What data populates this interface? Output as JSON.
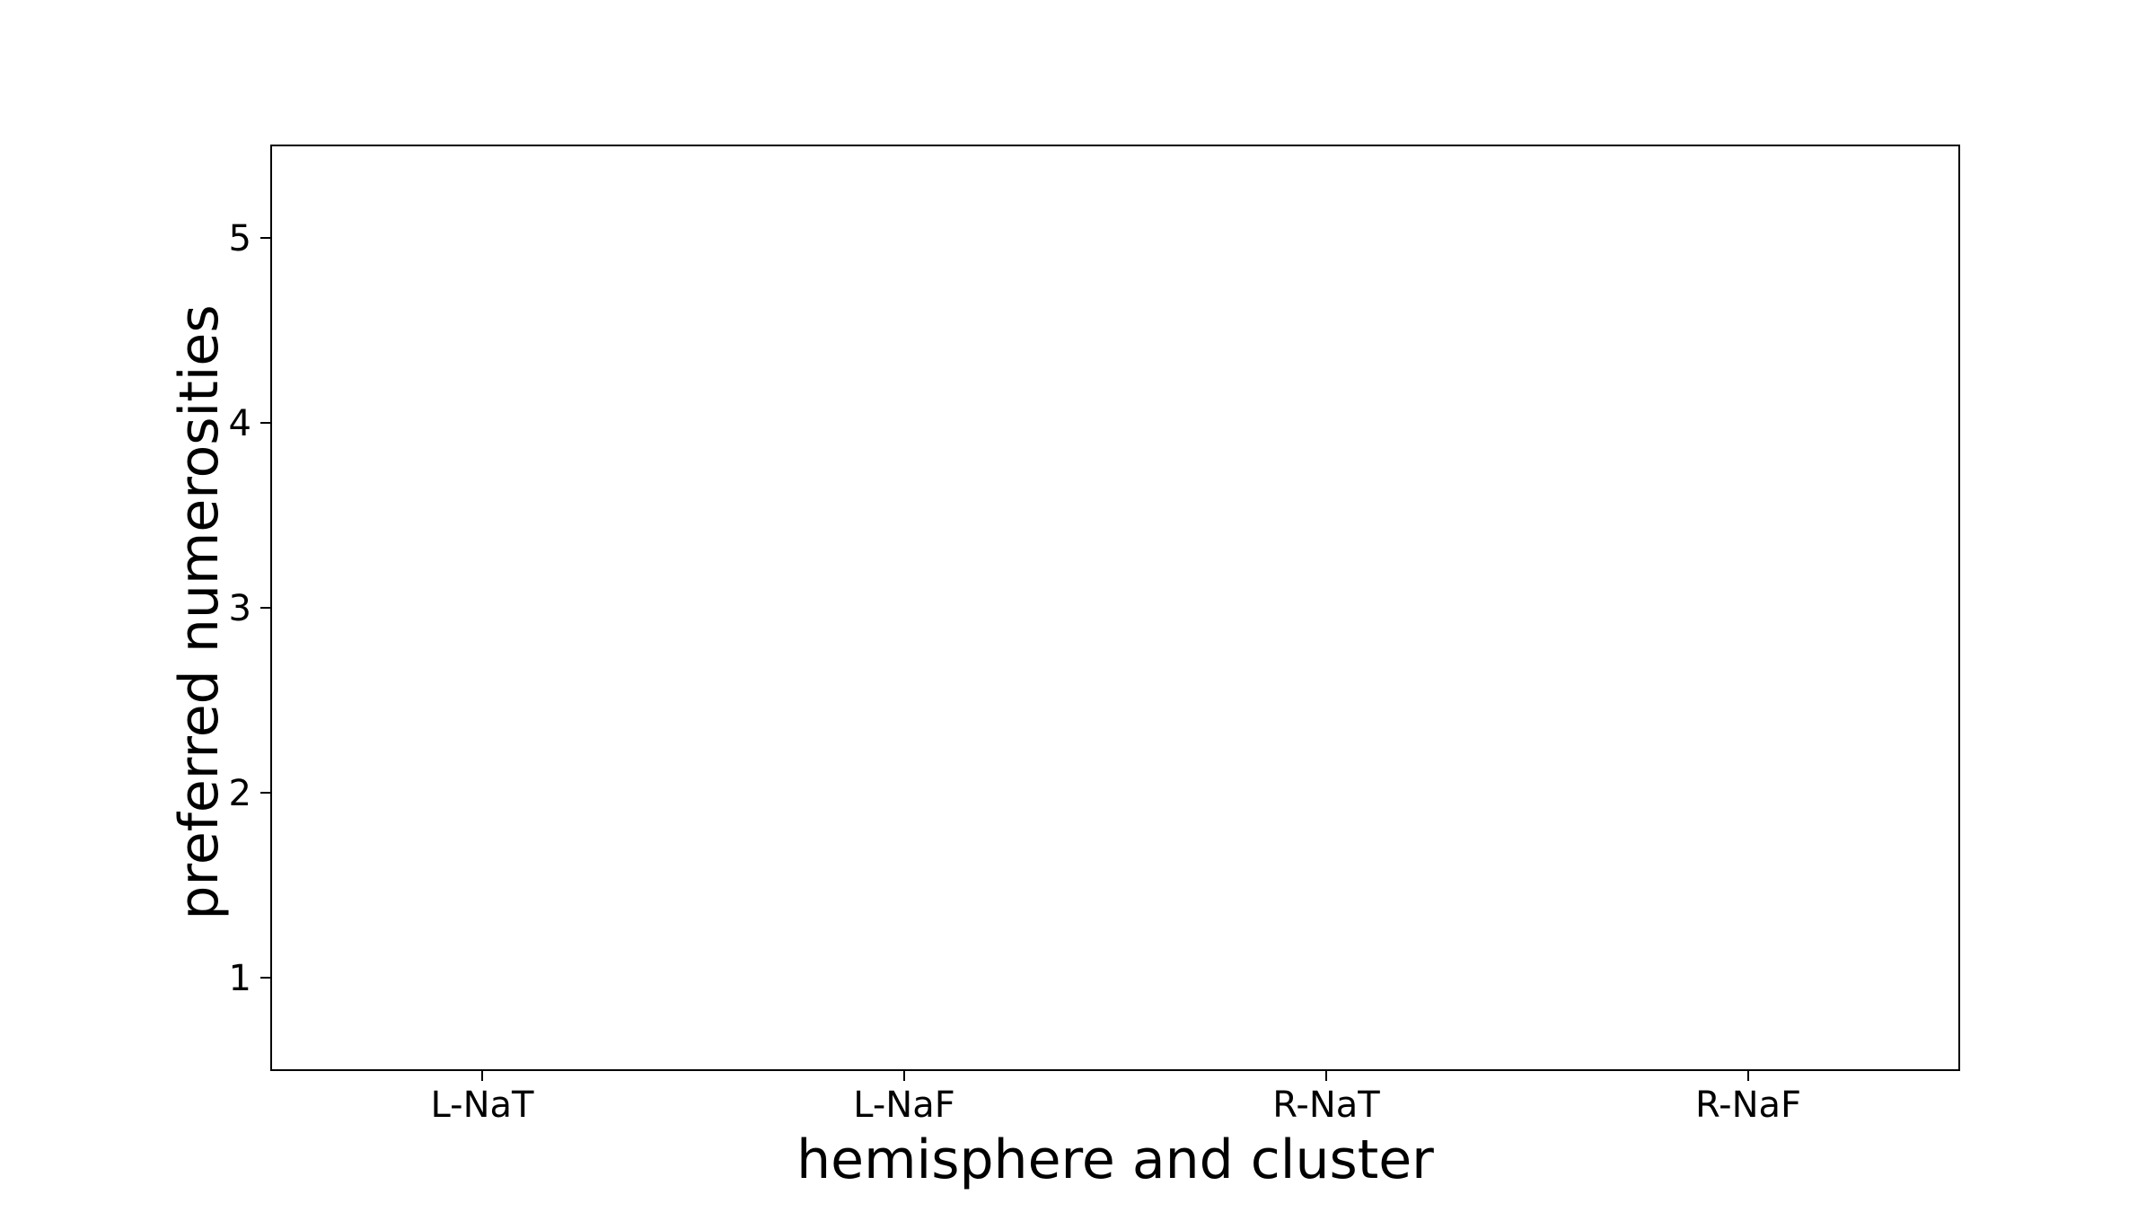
{
  "chart_data": {
    "type": "scatter",
    "categories": [
      "L-NaT",
      "L-NaF",
      "R-NaT",
      "R-NaF"
    ],
    "series": [],
    "xlabel": "hemisphere and cluster",
    "ylabel": "preferred numerosities",
    "ylim": [
      0.5,
      5.5
    ],
    "yticks": [
      1,
      2,
      3,
      4,
      5
    ],
    "grid": false,
    "colors": {
      "axis": "#000000",
      "background": "#ffffff"
    }
  }
}
